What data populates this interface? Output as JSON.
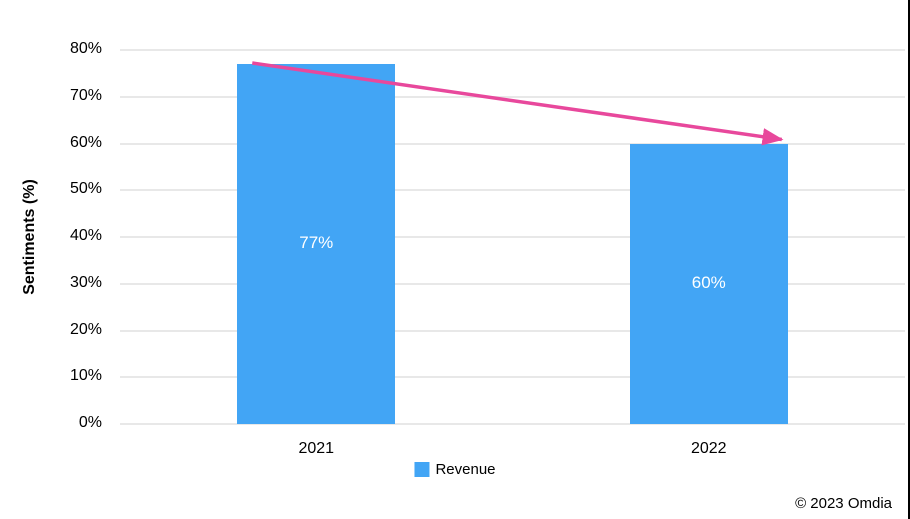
{
  "page": {
    "copyright_label": "© 2023 Omdia"
  },
  "chart_data": {
    "type": "bar",
    "title": "",
    "categories": [
      "2021",
      "2022"
    ],
    "series": [
      {
        "name": "Revenue",
        "values": [
          77,
          60
        ],
        "color": "#42A5F5"
      }
    ],
    "data_labels": [
      "77%",
      "60%"
    ],
    "xlabel": "",
    "ylabel": "Sentiments (%)",
    "ylim": [
      0,
      80
    ],
    "ytick_step": 10,
    "ytick_labels": [
      "0%",
      "10%",
      "20%",
      "30%",
      "40%",
      "50%",
      "60%",
      "70%",
      "80%"
    ],
    "grid": true,
    "gridline_color": "#e8e8e8",
    "legend": {
      "position": "bottom",
      "entries": [
        {
          "label": "Revenue",
          "color": "#42A5F5"
        }
      ]
    },
    "annotations": [
      {
        "type": "arrow",
        "from": "2021 bar top-left",
        "to": "2022 bar top-right",
        "color": "#E8489C",
        "meaning": "decline in sentiment from 77% to 60%"
      }
    ]
  }
}
